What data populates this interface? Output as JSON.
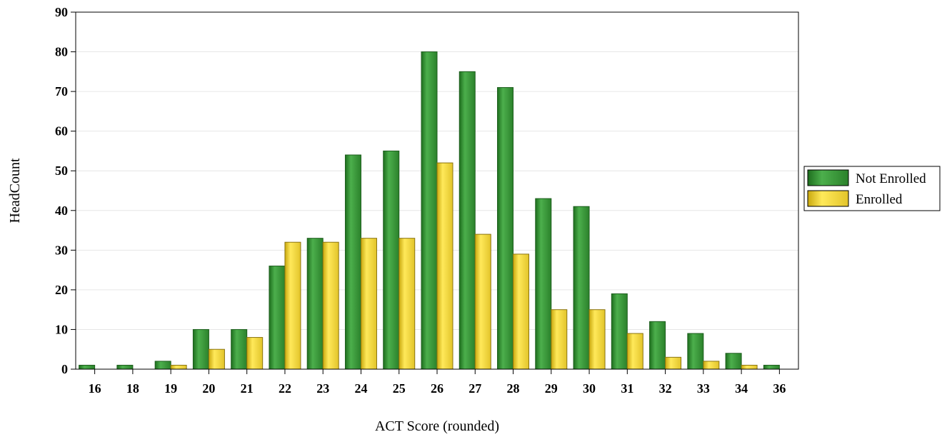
{
  "chart_data": {
    "type": "bar",
    "title": "",
    "xlabel": "ACT Score (rounded)",
    "ylabel": "HeadCount",
    "ylim": [
      0,
      90
    ],
    "yticks": [
      0,
      10,
      20,
      30,
      40,
      50,
      60,
      70,
      80,
      90
    ],
    "grid": true,
    "legend_position": "right",
    "categories": [
      "16",
      "18",
      "19",
      "20",
      "21",
      "22",
      "23",
      "24",
      "25",
      "26",
      "27",
      "28",
      "29",
      "30",
      "31",
      "32",
      "33",
      "34",
      "36"
    ],
    "series": [
      {
        "name": "Not Enrolled",
        "color": "#3a9a3a",
        "values": [
          1,
          1,
          2,
          10,
          10,
          26,
          33,
          54,
          55,
          80,
          75,
          71,
          43,
          41,
          19,
          12,
          9,
          4,
          1
        ]
      },
      {
        "name": "Enrolled",
        "color": "#f5dc3c",
        "values": [
          0,
          0,
          1,
          5,
          8,
          32,
          32,
          33,
          33,
          52,
          34,
          29,
          15,
          15,
          9,
          3,
          2,
          1,
          0
        ]
      }
    ]
  }
}
